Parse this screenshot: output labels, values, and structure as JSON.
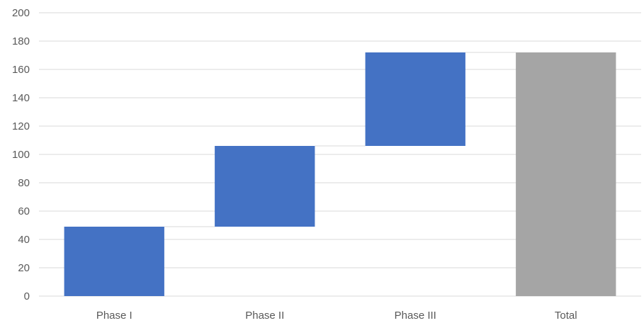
{
  "chart_data": {
    "type": "bar",
    "subtype": "waterfall",
    "categories": [
      "Phase I",
      "Phase II",
      "Phase III",
      "Total"
    ],
    "increments": [
      49,
      57,
      66,
      172
    ],
    "bases": [
      0,
      49,
      106,
      0
    ],
    "is_total": [
      false,
      false,
      false,
      true
    ],
    "y_ticks": [
      0,
      20,
      40,
      60,
      80,
      100,
      120,
      140,
      160,
      180,
      200
    ],
    "ylim": [
      0,
      200
    ],
    "grid": true,
    "legend": "none",
    "colors": {
      "increase": "#4472C4",
      "total": "#A5A5A5",
      "gridline": "#D9D9D9",
      "text": "#595959"
    }
  }
}
